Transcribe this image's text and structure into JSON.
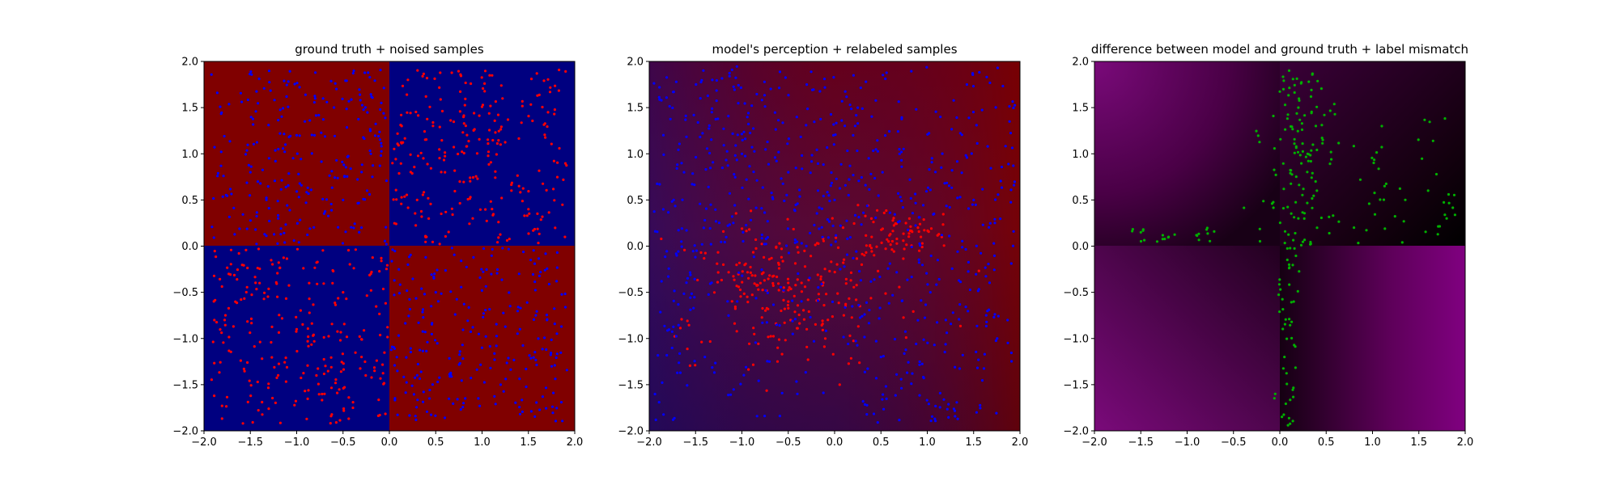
{
  "colors": {
    "red": "#800000",
    "blue": "#000080",
    "point_red": "#ff0000",
    "point_blue": "#0000ff",
    "point_green": "#00b000",
    "purple": "#800080",
    "black": "#000000"
  },
  "chart_data": [
    {
      "type": "scatter",
      "title": "ground truth + noised samples",
      "xlim": [
        -2,
        2
      ],
      "ylim": [
        -2,
        2
      ],
      "xticks": [
        "−2.0",
        "−1.5",
        "−1.0",
        "−0.5",
        "0.0",
        "0.5",
        "1.0",
        "1.5",
        "2.0"
      ],
      "yticks": [
        "−2.0",
        "−1.5",
        "−1.0",
        "−0.5",
        "0.0",
        "0.5",
        "1.0",
        "1.5",
        "2.0"
      ],
      "background": "XOR quadrants: red where x<0,y>0 and x>0,y<0; blue where x>0,y>0 and x<0,y<0",
      "series": [
        {
          "color_key": "point_red",
          "count": 500,
          "values": [
            [
              0.3,
              0.5
            ],
            [
              0.6,
              0.8
            ],
            [
              0.9,
              0.3
            ],
            [
              1.2,
              1.1
            ],
            [
              0.4,
              0.1
            ],
            [
              -0.5,
              -0.5
            ],
            [
              -1.0,
              -0.9
            ],
            [
              -0.3,
              -1.2
            ],
            [
              -1.4,
              -0.4
            ],
            [
              -0.7,
              -1.6
            ],
            [
              0.2,
              1.8
            ],
            [
              1.5,
              0.4
            ],
            [
              -0.2,
              -0.3
            ],
            [
              0.8,
              1.4
            ],
            [
              -1.2,
              -1.4
            ]
          ]
        },
        {
          "color_key": "point_blue",
          "count": 500,
          "values": [
            [
              -0.5,
              0.5
            ],
            [
              -1.0,
              1.2
            ],
            [
              -0.3,
              0.2
            ],
            [
              -1.5,
              0.8
            ],
            [
              -0.8,
              1.6
            ],
            [
              0.5,
              -0.5
            ],
            [
              1.0,
              -1.1
            ],
            [
              0.3,
              -1.4
            ],
            [
              1.4,
              -0.3
            ],
            [
              0.8,
              -1.7
            ],
            [
              -0.2,
              1.0
            ],
            [
              1.7,
              -0.8
            ],
            [
              -1.2,
              0.3
            ],
            [
              0.2,
              -0.2
            ],
            [
              1.2,
              -1.5
            ]
          ]
        }
      ]
    },
    {
      "type": "scatter",
      "title": "model's perception + relabeled samples",
      "xlim": [
        -2,
        2
      ],
      "ylim": [
        -2,
        2
      ],
      "xticks": [
        "−2.0",
        "−1.5",
        "−1.0",
        "−0.5",
        "0.0",
        "0.5",
        "1.0",
        "1.5",
        "2.0"
      ],
      "yticks": [
        "−2.0",
        "−1.5",
        "−1.0",
        "−0.5",
        "0.0",
        "0.5",
        "1.0",
        "1.5",
        "2.0"
      ],
      "background": "smooth gradient: dark red at top, blue at lower-left, red at lower-right",
      "series": [
        {
          "color_key": "point_red",
          "count": 300,
          "values": [
            [
              -0.8,
              -0.4
            ],
            [
              -0.5,
              -0.6
            ],
            [
              -1.2,
              -0.2
            ],
            [
              -0.3,
              -0.9
            ],
            [
              0.4,
              0.1
            ],
            [
              0.9,
              0.2
            ],
            [
              -0.6,
              -0.2
            ],
            [
              -0.1,
              -1.0
            ]
          ]
        },
        {
          "color_key": "point_blue",
          "count": 700,
          "values": [
            [
              -0.5,
              0.8
            ],
            [
              0.2,
              1.2
            ],
            [
              -1.0,
              1.0
            ],
            [
              1.2,
              -0.8
            ],
            [
              0.5,
              -1.2
            ],
            [
              1.5,
              0.5
            ],
            [
              -1.4,
              -1.2
            ],
            [
              0.0,
              0.5
            ]
          ]
        }
      ]
    },
    {
      "type": "scatter",
      "title": "difference between model and ground truth + label mismatch",
      "xlim": [
        -2,
        2
      ],
      "ylim": [
        -2,
        2
      ],
      "xticks": [
        "−2.0",
        "−1.5",
        "−1.0",
        "−0.5",
        "0.0",
        "0.5",
        "1.0",
        "1.5",
        "2.0"
      ],
      "yticks": [
        "−2.0",
        "−1.5",
        "−1.0",
        "−0.5",
        "0.0",
        "0.5",
        "1.0",
        "1.5",
        "2.0"
      ],
      "background": "purple-to-black difference map; dark near decision boundaries",
      "series": [
        {
          "color_key": "point_green",
          "count": 250,
          "values": [
            [
              0.1,
              1.9
            ],
            [
              0.2,
              1.5
            ],
            [
              0.3,
              1.0
            ],
            [
              0.4,
              0.6
            ],
            [
              0.2,
              0.3
            ],
            [
              0.1,
              -0.2
            ],
            [
              0.15,
              -0.6
            ],
            [
              0.05,
              -1.2
            ],
            [
              -0.05,
              -1.6
            ],
            [
              -1.5,
              0.15
            ],
            [
              -1.2,
              0.1
            ],
            [
              -0.9,
              0.12
            ],
            [
              1.6,
              0.6
            ],
            [
              1.8,
              0.3
            ],
            [
              1.1,
              1.3
            ],
            [
              0.8,
              0.2
            ]
          ]
        }
      ]
    }
  ]
}
